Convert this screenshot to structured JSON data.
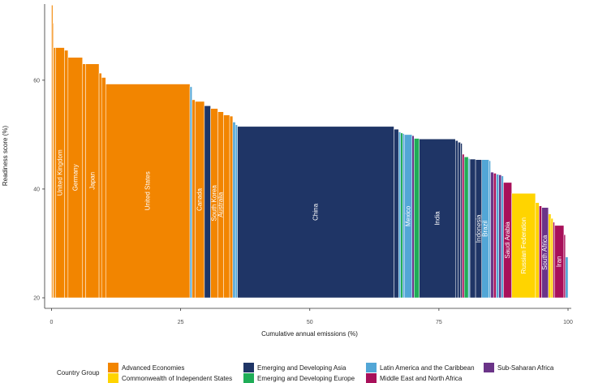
{
  "chart_data": {
    "type": "bar",
    "variant": "variable-width (Marimekko) bars sorted by readiness score",
    "xlabel": "Cumulative annual emissions (%)",
    "ylabel": "Readiness score (%)",
    "xlim": [
      0,
      100
    ],
    "ylim": [
      20,
      74
    ],
    "x_ticks": [
      "0",
      "25",
      "50",
      "75",
      "100"
    ],
    "y_ticks": [
      "20",
      "40",
      "60"
    ],
    "grid": false,
    "legend_title": "Country Group",
    "legend_position": "bottom",
    "groups": [
      {
        "name": "Advanced Economies",
        "color": "#f28500"
      },
      {
        "name": "Commonwealth of Independent States",
        "color": "#ffd400"
      },
      {
        "name": "Emerging and Developing Asia",
        "color": "#1f3566"
      },
      {
        "name": "Emerging and Developing Europe",
        "color": "#1fad57"
      },
      {
        "name": "Latin America and the Caribbean",
        "color": "#52a6d6"
      },
      {
        "name": "Middle East and North Africa",
        "color": "#a8105a"
      },
      {
        "name": "Sub-Saharan Africa",
        "color": "#6b3488"
      }
    ],
    "bars": [
      {
        "x0": 0.0,
        "x1": 0.25,
        "y": 73.8,
        "group": "Advanced Economies"
      },
      {
        "x0": 0.25,
        "x1": 0.4,
        "y": 70.5,
        "group": "Advanced Economies"
      },
      {
        "x0": 0.4,
        "x1": 0.8,
        "y": 66.0,
        "group": "Advanced Economies"
      },
      {
        "x0": 0.8,
        "x1": 2.5,
        "y": 66.0,
        "group": "Advanced Economies",
        "label": "United Kingdom"
      },
      {
        "x0": 2.5,
        "x1": 3.2,
        "y": 65.5,
        "group": "Advanced Economies"
      },
      {
        "x0": 3.2,
        "x1": 6.0,
        "y": 64.2,
        "group": "Advanced Economies",
        "label": "Germany"
      },
      {
        "x0": 6.0,
        "x1": 6.6,
        "y": 63.0,
        "group": "Advanced Economies"
      },
      {
        "x0": 6.6,
        "x1": 9.2,
        "y": 63.0,
        "group": "Advanced Economies",
        "label": "Japan"
      },
      {
        "x0": 9.2,
        "x1": 9.7,
        "y": 61.3,
        "group": "Advanced Economies"
      },
      {
        "x0": 9.7,
        "x1": 10.5,
        "y": 60.5,
        "group": "Advanced Economies"
      },
      {
        "x0": 10.5,
        "x1": 26.8,
        "y": 59.3,
        "group": "Advanced Economies",
        "label": "United States"
      },
      {
        "x0": 26.8,
        "x1": 27.2,
        "y": 58.8,
        "group": "Latin America and the Caribbean"
      },
      {
        "x0": 27.2,
        "x1": 27.8,
        "y": 56.4,
        "group": "Advanced Economies"
      },
      {
        "x0": 27.8,
        "x1": 29.6,
        "y": 56.1,
        "group": "Advanced Economies",
        "label": "Canada"
      },
      {
        "x0": 29.6,
        "x1": 30.8,
        "y": 55.3,
        "group": "Emerging and Developing Asia"
      },
      {
        "x0": 30.8,
        "x1": 32.2,
        "y": 54.8,
        "group": "Advanced Economies",
        "label": "South Korea"
      },
      {
        "x0": 32.2,
        "x1": 33.3,
        "y": 54.2,
        "group": "Advanced Economies",
        "label": "Australia"
      },
      {
        "x0": 33.3,
        "x1": 34.5,
        "y": 53.6,
        "group": "Advanced Economies"
      },
      {
        "x0": 34.5,
        "x1": 35.1,
        "y": 53.4,
        "group": "Advanced Economies"
      },
      {
        "x0": 35.1,
        "x1": 35.6,
        "y": 52.3,
        "group": "Latin America and the Caribbean"
      },
      {
        "x0": 35.6,
        "x1": 36.0,
        "y": 51.8,
        "group": "Latin America and the Caribbean"
      },
      {
        "x0": 36.0,
        "x1": 66.3,
        "y": 51.5,
        "group": "Emerging and Developing Asia",
        "label": "China"
      },
      {
        "x0": 66.3,
        "x1": 67.2,
        "y": 51.0,
        "group": "Emerging and Developing Asia"
      },
      {
        "x0": 67.2,
        "x1": 67.6,
        "y": 50.5,
        "group": "Latin America and the Caribbean"
      },
      {
        "x0": 67.6,
        "x1": 68.0,
        "y": 50.3,
        "group": "Emerging and Developing Europe"
      },
      {
        "x0": 68.0,
        "x1": 68.3,
        "y": 50.2,
        "group": "Latin America and the Caribbean"
      },
      {
        "x0": 68.3,
        "x1": 69.8,
        "y": 50.0,
        "group": "Latin America and the Caribbean",
        "label": "Mexico"
      },
      {
        "x0": 69.8,
        "x1": 70.2,
        "y": 49.8,
        "group": "Sub-Saharan Africa"
      },
      {
        "x0": 70.2,
        "x1": 71.2,
        "y": 49.3,
        "group": "Emerging and Developing Europe"
      },
      {
        "x0": 71.2,
        "x1": 78.2,
        "y": 49.2,
        "group": "Emerging and Developing Asia",
        "label": "India"
      },
      {
        "x0": 78.2,
        "x1": 78.7,
        "y": 48.9,
        "group": "Emerging and Developing Asia"
      },
      {
        "x0": 78.7,
        "x1": 79.2,
        "y": 48.6,
        "group": "Emerging and Developing Asia"
      },
      {
        "x0": 79.2,
        "x1": 79.5,
        "y": 48.4,
        "group": "Emerging and Developing Asia"
      },
      {
        "x0": 79.5,
        "x1": 79.9,
        "y": 46.4,
        "group": "Middle East and North Africa"
      },
      {
        "x0": 79.9,
        "x1": 80.7,
        "y": 45.9,
        "group": "Emerging and Developing Europe"
      },
      {
        "x0": 80.7,
        "x1": 81.0,
        "y": 45.6,
        "group": "Latin America and the Caribbean"
      },
      {
        "x0": 81.0,
        "x1": 82.1,
        "y": 45.5,
        "group": "Emerging and Developing Asia"
      },
      {
        "x0": 82.1,
        "x1": 83.3,
        "y": 45.4,
        "group": "Emerging and Developing Asia",
        "label": "Indonesia"
      },
      {
        "x0": 83.3,
        "x1": 84.7,
        "y": 45.4,
        "group": "Latin America and the Caribbean",
        "label": "Brazil"
      },
      {
        "x0": 84.7,
        "x1": 85.0,
        "y": 45.2,
        "group": "Latin America and the Caribbean"
      },
      {
        "x0": 85.0,
        "x1": 85.6,
        "y": 43.1,
        "group": "Sub-Saharan Africa"
      },
      {
        "x0": 85.6,
        "x1": 86.1,
        "y": 42.9,
        "group": "Middle East and North Africa"
      },
      {
        "x0": 86.1,
        "x1": 86.6,
        "y": 42.7,
        "group": "Latin America and the Caribbean"
      },
      {
        "x0": 86.6,
        "x1": 87.1,
        "y": 42.6,
        "group": "Sub-Saharan Africa"
      },
      {
        "x0": 87.1,
        "x1": 87.5,
        "y": 42.4,
        "group": "Latin America and the Caribbean"
      },
      {
        "x0": 87.5,
        "x1": 89.1,
        "y": 41.2,
        "group": "Middle East and North Africa",
        "label": "Saudi Arabia"
      },
      {
        "x0": 89.1,
        "x1": 93.7,
        "y": 39.2,
        "group": "Commonwealth of Independent States",
        "label": "Russian Federation"
      },
      {
        "x0": 93.7,
        "x1": 94.4,
        "y": 37.5,
        "group": "Commonwealth of Independent States"
      },
      {
        "x0": 94.4,
        "x1": 94.9,
        "y": 36.9,
        "group": "Middle East and North Africa"
      },
      {
        "x0": 94.9,
        "x1": 96.2,
        "y": 36.6,
        "group": "Sub-Saharan Africa",
        "label": "South Africa"
      },
      {
        "x0": 96.2,
        "x1": 96.7,
        "y": 35.4,
        "group": "Commonwealth of Independent States"
      },
      {
        "x0": 96.7,
        "x1": 97.1,
        "y": 34.6,
        "group": "Commonwealth of Independent States"
      },
      {
        "x0": 97.1,
        "x1": 97.4,
        "y": 33.9,
        "group": "Middle East and North Africa"
      },
      {
        "x0": 97.4,
        "x1": 99.2,
        "y": 33.3,
        "group": "Middle East and North Africa",
        "label": "Iran"
      },
      {
        "x0": 99.2,
        "x1": 99.5,
        "y": 31.6,
        "group": "Middle East and North Africa"
      },
      {
        "x0": 99.5,
        "x1": 100.0,
        "y": 27.5,
        "group": "Latin America and the Caribbean"
      }
    ]
  }
}
